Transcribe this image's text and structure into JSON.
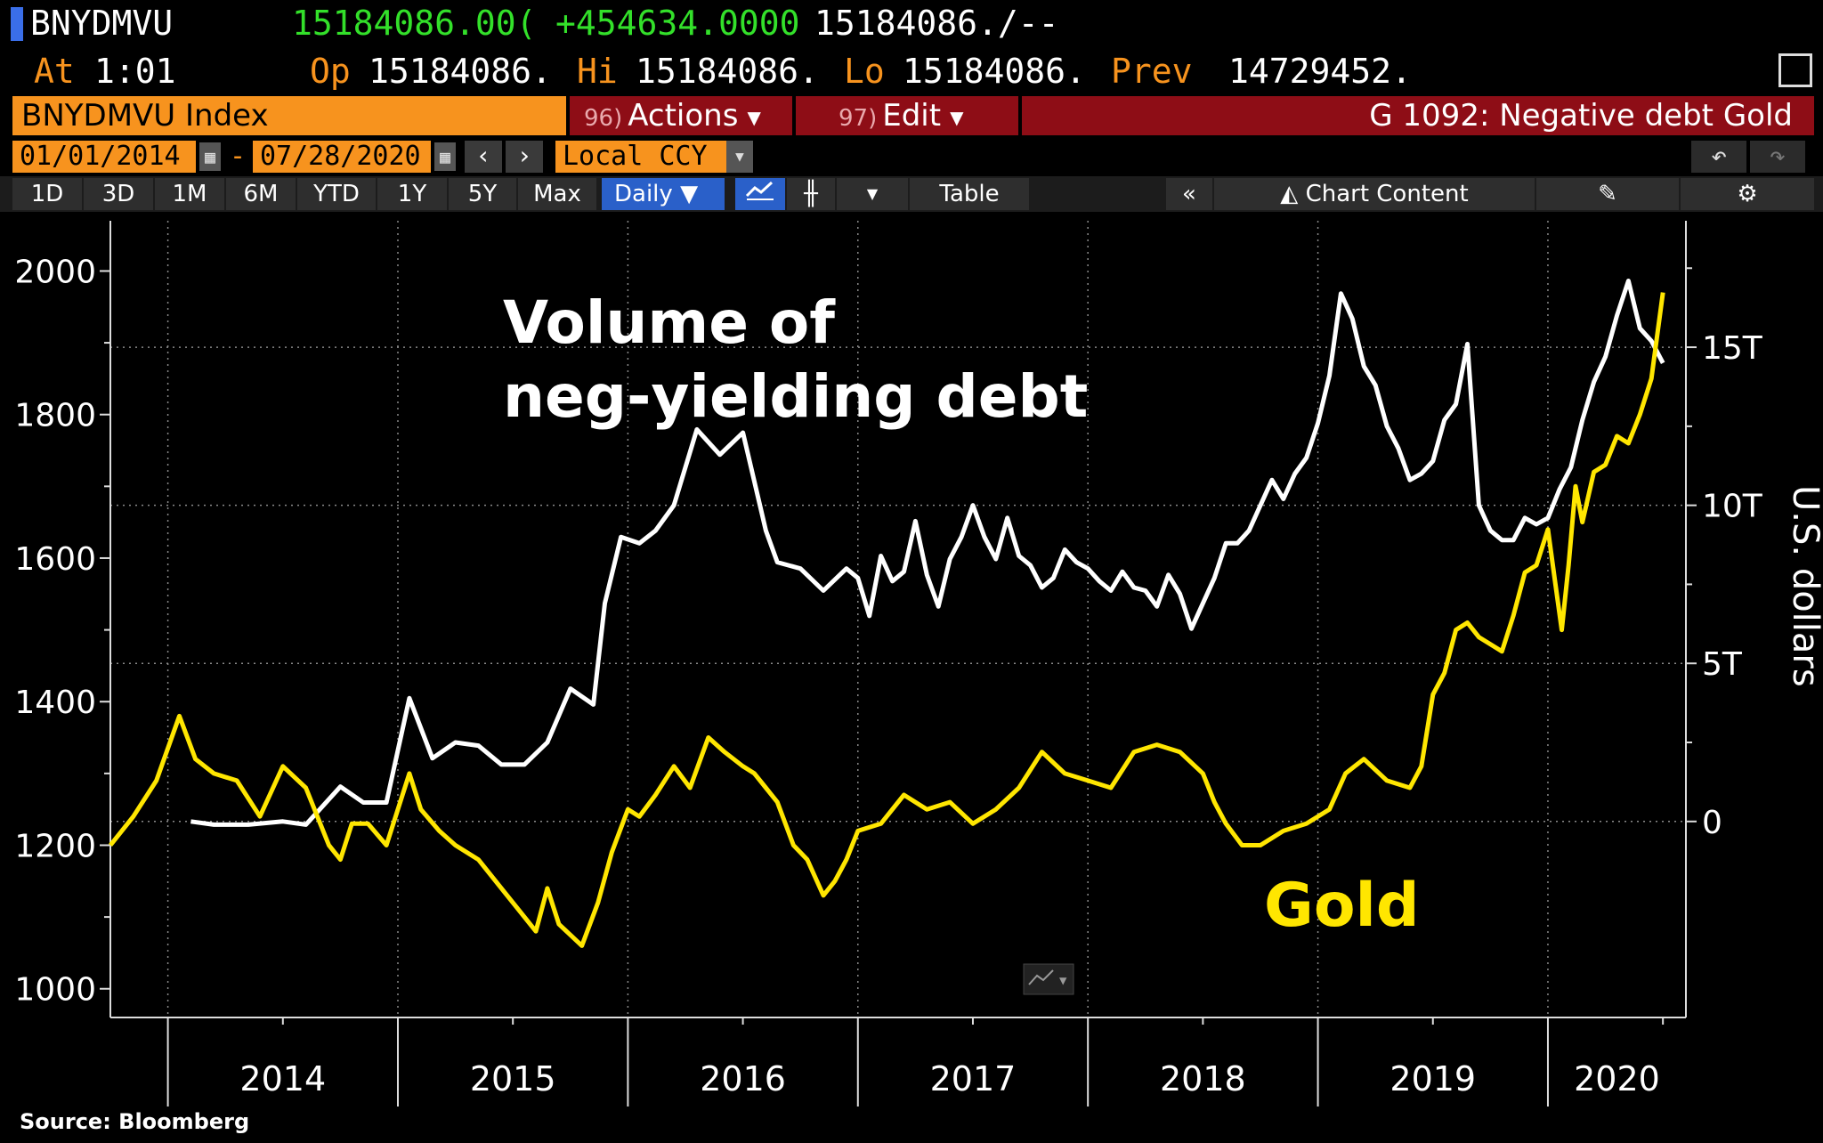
{
  "header": {
    "ticker": "BNYDMVU",
    "last_price": "15184086.00(",
    "change": "+454634.0000",
    "bid_ask": "15184086./--",
    "time_label": "At",
    "time": "1:01",
    "open_label": "Op",
    "open": "15184086.",
    "high_label": "Hi",
    "high": "15184086.",
    "low_label": "Lo",
    "low": "15184086.",
    "prev_label": "Prev",
    "prev": "14729452."
  },
  "command_bar": {
    "security": "BNYDMVU Index",
    "actions_num": "96)",
    "actions_label": "Actions",
    "edit_num": "97)",
    "edit_label": "Edit",
    "chart_title": "G 1092: Negative debt Gold"
  },
  "controls": {
    "start_date": "01/01/2014",
    "date_separator": "-",
    "end_date": "07/28/2020",
    "currency": "Local CCY",
    "prev_icon": "chevron-left-icon",
    "next_icon": "chevron-right-icon"
  },
  "toolbar": {
    "periods": [
      "1D",
      "3D",
      "1M",
      "6M",
      "YTD",
      "1Y",
      "5Y",
      "Max"
    ],
    "frequency": "Daily",
    "table_label": "Table",
    "chart_content_label": "Chart Content"
  },
  "annotations": {
    "white_series_label_line1": "Volume of",
    "white_series_label_line2": "neg-yielding debt",
    "gold_label": "Gold",
    "source": "Source: Bloomberg"
  },
  "colors": {
    "gold_line": "#ffe600",
    "debt_line": "#ffffff",
    "accent_orange": "#f7931e",
    "menu_red": "#8e0d16",
    "positive_green": "#33e02a"
  },
  "chart_data": {
    "type": "line",
    "x_tick_labels": [
      "2014",
      "2015",
      "2016",
      "2017",
      "2018",
      "2019",
      "2020"
    ],
    "xlim": [
      2013.75,
      2020.6
    ],
    "left_axis": {
      "ticks": [
        1000,
        1200,
        1400,
        1600,
        1800,
        2000
      ],
      "tick_labels": [
        "1000",
        "1200",
        "1400",
        "1600",
        "1800",
        "2000"
      ],
      "ylim": [
        960,
        2070
      ]
    },
    "right_axis": {
      "label": "U.S. dollars",
      "ticks": [
        0,
        5,
        10,
        15
      ],
      "tick_labels": [
        "0",
        "5T",
        "10T",
        "15T"
      ],
      "ylim": [
        -6.2,
        19
      ]
    },
    "grid": true,
    "series": [
      {
        "name": "Volume of neg-yielding debt",
        "axis": "right",
        "x": [
          2014.1,
          2014.2,
          2014.35,
          2014.5,
          2014.6,
          2014.75,
          2014.85,
          2014.95,
          2015.05,
          2015.15,
          2015.25,
          2015.35,
          2015.45,
          2015.55,
          2015.65,
          2015.75,
          2015.85,
          2015.9,
          2015.97,
          2016.05,
          2016.12,
          2016.2,
          2016.3,
          2016.4,
          2016.5,
          2016.6,
          2016.65,
          2016.75,
          2016.85,
          2016.95,
          2017.0,
          2017.05,
          2017.1,
          2017.15,
          2017.2,
          2017.25,
          2017.3,
          2017.35,
          2017.4,
          2017.45,
          2017.5,
          2017.55,
          2017.6,
          2017.65,
          2017.7,
          2017.75,
          2017.8,
          2017.85,
          2017.9,
          2017.95,
          2018.0,
          2018.05,
          2018.1,
          2018.15,
          2018.2,
          2018.25,
          2018.3,
          2018.35,
          2018.4,
          2018.45,
          2018.5,
          2018.55,
          2018.6,
          2018.65,
          2018.7,
          2018.75,
          2018.8,
          2018.85,
          2018.9,
          2018.95,
          2019.0,
          2019.05,
          2019.1,
          2019.15,
          2019.2,
          2019.25,
          2019.3,
          2019.35,
          2019.4,
          2019.45,
          2019.5,
          2019.55,
          2019.6,
          2019.65,
          2019.7,
          2019.75,
          2019.8,
          2019.85,
          2019.9,
          2019.95,
          2020.0,
          2020.05,
          2020.1,
          2020.15,
          2020.2,
          2020.25,
          2020.3,
          2020.35,
          2020.4,
          2020.45,
          2020.5
        ],
        "values": [
          0.0,
          -0.1,
          -0.1,
          0.0,
          -0.1,
          1.1,
          0.6,
          0.6,
          3.9,
          2.0,
          2.5,
          2.4,
          1.8,
          1.8,
          2.5,
          4.2,
          3.7,
          6.9,
          9.0,
          8.8,
          9.2,
          10.0,
          12.4,
          11.6,
          12.3,
          9.2,
          8.2,
          8.0,
          7.3,
          8.0,
          7.7,
          6.5,
          8.4,
          7.6,
          7.9,
          9.5,
          7.8,
          6.8,
          8.3,
          9.0,
          10.0,
          9.0,
          8.3,
          9.6,
          8.4,
          8.1,
          7.4,
          7.7,
          8.6,
          8.2,
          8.0,
          7.6,
          7.3,
          7.9,
          7.4,
          7.3,
          6.8,
          7.8,
          7.2,
          6.1,
          6.9,
          7.7,
          8.8,
          8.8,
          9.2,
          10.0,
          10.8,
          10.2,
          11.0,
          11.5,
          12.6,
          14.1,
          16.7,
          15.9,
          14.4,
          13.8,
          12.5,
          11.8,
          10.8,
          11.0,
          11.4,
          12.7,
          13.2,
          15.1,
          10.0,
          9.2,
          8.9,
          8.9,
          9.6,
          9.4,
          9.6,
          10.5,
          11.2,
          12.7,
          13.9,
          14.7,
          16.0,
          17.1,
          15.6,
          15.2,
          14.5
        ]
      },
      {
        "name": "Gold",
        "axis": "left",
        "x": [
          2013.75,
          2013.85,
          2013.95,
          2014.05,
          2014.12,
          2014.2,
          2014.3,
          2014.4,
          2014.5,
          2014.6,
          2014.7,
          2014.75,
          2014.8,
          2014.87,
          2014.95,
          2015.05,
          2015.1,
          2015.18,
          2015.25,
          2015.35,
          2015.45,
          2015.55,
          2015.6,
          2015.65,
          2015.7,
          2015.8,
          2015.87,
          2015.93,
          2016.0,
          2016.05,
          2016.12,
          2016.2,
          2016.27,
          2016.35,
          2016.42,
          2016.5,
          2016.55,
          2016.6,
          2016.65,
          2016.72,
          2016.78,
          2016.85,
          2016.9,
          2016.95,
          2017.0,
          2017.1,
          2017.2,
          2017.3,
          2017.4,
          2017.5,
          2017.6,
          2017.7,
          2017.8,
          2017.9,
          2018.0,
          2018.1,
          2018.2,
          2018.3,
          2018.4,
          2018.5,
          2018.55,
          2018.6,
          2018.67,
          2018.75,
          2018.85,
          2018.95,
          2019.05,
          2019.12,
          2019.2,
          2019.3,
          2019.4,
          2019.45,
          2019.5,
          2019.55,
          2019.6,
          2019.65,
          2019.7,
          2019.75,
          2019.8,
          2019.85,
          2019.9,
          2019.95,
          2020.0,
          2020.03,
          2020.06,
          2020.09,
          2020.12,
          2020.15,
          2020.2,
          2020.25,
          2020.3,
          2020.35,
          2020.4,
          2020.45,
          2020.5
        ],
        "values": [
          1200,
          1240,
          1290,
          1380,
          1320,
          1300,
          1290,
          1240,
          1310,
          1280,
          1200,
          1180,
          1230,
          1230,
          1200,
          1300,
          1250,
          1220,
          1200,
          1180,
          1140,
          1100,
          1080,
          1140,
          1090,
          1060,
          1120,
          1190,
          1250,
          1240,
          1270,
          1310,
          1280,
          1350,
          1330,
          1310,
          1300,
          1280,
          1260,
          1200,
          1180,
          1130,
          1150,
          1180,
          1220,
          1230,
          1270,
          1250,
          1260,
          1230,
          1250,
          1280,
          1330,
          1300,
          1290,
          1280,
          1330,
          1340,
          1330,
          1300,
          1260,
          1230,
          1200,
          1200,
          1220,
          1230,
          1250,
          1300,
          1320,
          1290,
          1280,
          1310,
          1410,
          1440,
          1500,
          1510,
          1490,
          1480,
          1470,
          1520,
          1580,
          1590,
          1640,
          1570,
          1500,
          1590,
          1700,
          1650,
          1720,
          1730,
          1770,
          1760,
          1800,
          1850,
          1970
        ]
      }
    ]
  }
}
